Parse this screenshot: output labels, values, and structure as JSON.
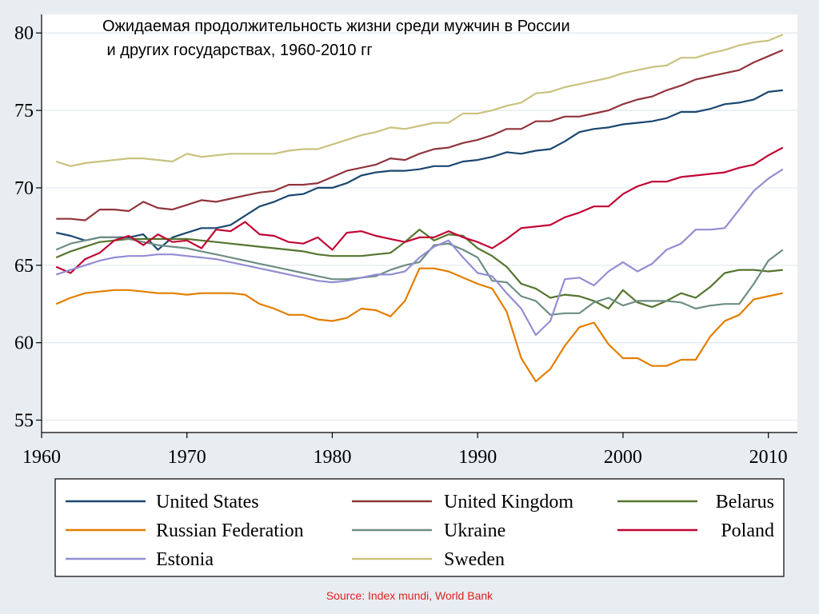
{
  "title": {
    "line1": "Ожидаемая продолжительность жизни среди мужчин в России",
    "line2": " и других государствах, 1960-2010 гг"
  },
  "source": "Source: Index mundi, World Bank",
  "chart_data": {
    "type": "line",
    "title": "Ожидаемая продолжительность жизни среди мужчин в России и других государствах, 1960-2010 гг",
    "xlabel": "",
    "ylabel": "",
    "xlim": [
      1960,
      2012
    ],
    "ylim": [
      54.2,
      81.2
    ],
    "x_ticks": [
      1960,
      1970,
      1980,
      1990,
      2000,
      2010
    ],
    "y_ticks": [
      55,
      60,
      65,
      70,
      75,
      80
    ],
    "grid": "horizontal",
    "legend_placement": "bottom",
    "x": [
      1961,
      1962,
      1963,
      1964,
      1965,
      1966,
      1967,
      1968,
      1969,
      1970,
      1971,
      1972,
      1973,
      1974,
      1975,
      1976,
      1977,
      1978,
      1979,
      1980,
      1981,
      1982,
      1983,
      1984,
      1985,
      1986,
      1987,
      1988,
      1989,
      1990,
      1991,
      1992,
      1993,
      1994,
      1995,
      1996,
      1997,
      1998,
      1999,
      2000,
      2001,
      2002,
      2003,
      2004,
      2005,
      2006,
      2007,
      2008,
      2009,
      2010,
      2011
    ],
    "series": [
      {
        "name": "United States",
        "color": "#1a476f",
        "values": [
          67.1,
          66.9,
          66.6,
          66.8,
          66.8,
          66.8,
          67.0,
          66.0,
          66.8,
          67.1,
          67.4,
          67.4,
          67.6,
          68.2,
          68.8,
          69.1,
          69.5,
          69.6,
          70.0,
          70.0,
          70.3,
          70.8,
          71.0,
          71.1,
          71.1,
          71.2,
          71.4,
          71.4,
          71.7,
          71.8,
          72.0,
          72.3,
          72.2,
          72.4,
          72.5,
          73.0,
          73.6,
          73.8,
          73.9,
          74.1,
          74.2,
          74.3,
          74.5,
          74.9,
          74.9,
          75.1,
          75.4,
          75.5,
          75.7,
          76.2,
          76.3
        ]
      },
      {
        "name": "United Kingdom",
        "color": "#90353b",
        "values": [
          68.0,
          68.0,
          67.9,
          68.6,
          68.6,
          68.5,
          69.1,
          68.7,
          68.6,
          68.9,
          69.2,
          69.1,
          69.3,
          69.5,
          69.7,
          69.8,
          70.2,
          70.2,
          70.3,
          70.7,
          71.1,
          71.3,
          71.5,
          71.9,
          71.8,
          72.2,
          72.5,
          72.6,
          72.9,
          73.1,
          73.4,
          73.8,
          73.8,
          74.3,
          74.3,
          74.6,
          74.6,
          74.8,
          75.0,
          75.4,
          75.7,
          75.9,
          76.3,
          76.6,
          77.0,
          77.2,
          77.4,
          77.6,
          78.1,
          78.5,
          78.9
        ]
      },
      {
        "name": "Belarus",
        "color": "#55752f",
        "values": [
          65.5,
          65.9,
          66.2,
          66.5,
          66.6,
          66.7,
          66.7,
          66.7,
          66.7,
          66.7,
          66.6,
          66.5,
          66.4,
          66.3,
          66.2,
          66.1,
          66.0,
          65.9,
          65.7,
          65.6,
          65.6,
          65.6,
          65.7,
          65.8,
          66.5,
          67.3,
          66.6,
          67.0,
          66.9,
          66.1,
          65.6,
          64.9,
          63.8,
          63.5,
          62.9,
          63.1,
          63.0,
          62.7,
          62.2,
          63.4,
          62.6,
          62.3,
          62.7,
          63.2,
          62.9,
          63.6,
          64.5,
          64.7,
          64.7,
          64.6,
          64.7
        ]
      },
      {
        "name": "Russian Federation",
        "color": "#e37e00",
        "values": [
          62.5,
          62.9,
          63.2,
          63.3,
          63.4,
          63.4,
          63.3,
          63.2,
          63.2,
          63.1,
          63.2,
          63.2,
          63.2,
          63.1,
          62.5,
          62.2,
          61.8,
          61.8,
          61.5,
          61.4,
          61.6,
          62.2,
          62.1,
          61.7,
          62.7,
          64.8,
          64.8,
          64.6,
          64.2,
          63.8,
          63.5,
          62.0,
          59.0,
          57.5,
          58.3,
          59.8,
          61.0,
          61.3,
          59.9,
          59.0,
          59.0,
          58.5,
          58.5,
          58.9,
          58.9,
          60.4,
          61.4,
          61.8,
          62.8,
          63.0,
          63.2
        ]
      },
      {
        "name": "Ukraine",
        "color": "#6e8e84",
        "values": [
          66.0,
          66.4,
          66.6,
          66.8,
          66.8,
          66.7,
          66.5,
          66.3,
          66.2,
          66.1,
          65.9,
          65.7,
          65.5,
          65.3,
          65.1,
          64.9,
          64.7,
          64.5,
          64.3,
          64.1,
          64.1,
          64.2,
          64.3,
          64.7,
          65.0,
          65.2,
          66.3,
          66.4,
          66.0,
          65.5,
          64.0,
          63.9,
          63.0,
          62.7,
          61.8,
          61.9,
          61.9,
          62.6,
          62.9,
          62.4,
          62.7,
          62.7,
          62.7,
          62.6,
          62.2,
          62.4,
          62.5,
          62.5,
          63.8,
          65.3,
          66.0
        ]
      },
      {
        "name": "Poland",
        "color": "#c10534",
        "values": [
          64.9,
          64.5,
          65.4,
          65.8,
          66.6,
          66.9,
          66.3,
          67.0,
          66.5,
          66.6,
          66.1,
          67.3,
          67.2,
          67.8,
          67.0,
          66.9,
          66.5,
          66.4,
          66.8,
          66.0,
          67.1,
          67.2,
          66.9,
          66.7,
          66.5,
          66.8,
          66.8,
          67.2,
          66.8,
          66.5,
          66.1,
          66.7,
          67.4,
          67.5,
          67.6,
          68.1,
          68.4,
          68.8,
          68.8,
          69.6,
          70.1,
          70.4,
          70.4,
          70.7,
          70.8,
          70.9,
          71.0,
          71.3,
          71.5,
          72.1,
          72.6
        ]
      },
      {
        "name": "Estonia",
        "color": "#938dd2",
        "values": [
          64.4,
          64.7,
          65.0,
          65.3,
          65.5,
          65.6,
          65.6,
          65.7,
          65.7,
          65.6,
          65.5,
          65.4,
          65.2,
          65.0,
          64.8,
          64.6,
          64.4,
          64.2,
          64.0,
          63.9,
          64.0,
          64.2,
          64.4,
          64.4,
          64.6,
          65.5,
          66.2,
          66.6,
          65.5,
          64.5,
          64.3,
          63.2,
          62.2,
          60.5,
          61.4,
          64.1,
          64.2,
          63.7,
          64.6,
          65.2,
          64.6,
          65.1,
          66.0,
          66.4,
          67.3,
          67.3,
          67.4,
          68.6,
          69.8,
          70.6,
          71.2
        ]
      },
      {
        "name": "Sweden",
        "color": "#cac27e",
        "values": [
          71.7,
          71.4,
          71.6,
          71.7,
          71.8,
          71.9,
          71.9,
          71.8,
          71.7,
          72.2,
          72.0,
          72.1,
          72.2,
          72.2,
          72.2,
          72.2,
          72.4,
          72.5,
          72.5,
          72.8,
          73.1,
          73.4,
          73.6,
          73.9,
          73.8,
          74.0,
          74.2,
          74.2,
          74.8,
          74.8,
          75.0,
          75.3,
          75.5,
          76.1,
          76.2,
          76.5,
          76.7,
          76.9,
          77.1,
          77.4,
          77.6,
          77.8,
          77.9,
          78.4,
          78.4,
          78.7,
          78.9,
          79.2,
          79.4,
          79.5,
          79.9
        ]
      }
    ]
  }
}
